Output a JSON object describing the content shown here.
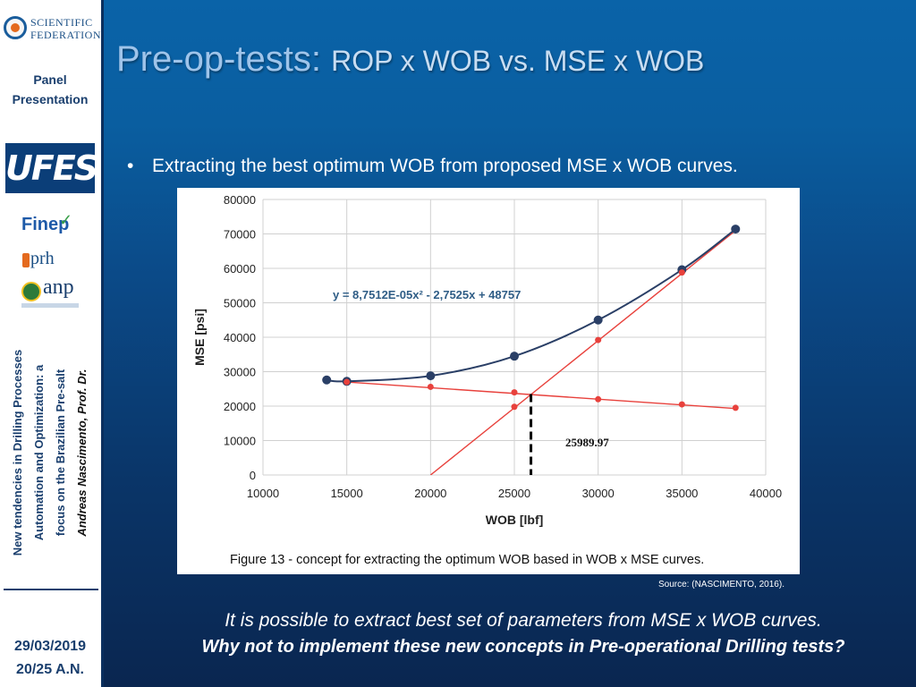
{
  "sidebar": {
    "logo_top": "SCIENTIFIC",
    "logo_bottom": "FEDERATION",
    "panel_line1": "Panel",
    "panel_line2": "Presentation",
    "ufes": "UFES",
    "finep": "Finep",
    "prh": "prh",
    "anp": "anp",
    "vertical_line1": "New tendencies in Drilling Processes",
    "vertical_line2": "Automation and Optimization: a",
    "vertical_line3": "focus on the Brazilian Pre-salt",
    "vertical_line4": "Andreas Nascimento, Prof. Dr.",
    "date": "29/03/2019",
    "page": "20/25  A.N."
  },
  "header": {
    "title_main": "Pre-op-tests: ",
    "title_sub": "ROP x WOB vs. MSE x WOB"
  },
  "bullet": {
    "symbol": "•",
    "text": "Extracting the best optimum WOB from proposed MSE x WOB curves."
  },
  "colors": {
    "curve": "#2a3f66",
    "lines": "#e8413c"
  },
  "chart_data": {
    "type": "scatter",
    "xlabel": "WOB [lbf]",
    "ylabel": "MSE [psi]",
    "xlim": [
      10000,
      40000
    ],
    "ylim": [
      0,
      80000
    ],
    "xticks": [
      10000,
      15000,
      20000,
      25000,
      30000,
      35000,
      40000
    ],
    "yticks": [
      0,
      10000,
      20000,
      30000,
      40000,
      50000,
      60000,
      70000,
      80000
    ],
    "grid": true,
    "equation": "y = 8,7512E-05x² - 2,7525x + 48757",
    "annotation": "25989.97",
    "optimum_wob": 25989.97,
    "caption": "Figure 13 - concept for extracting the optimum WOB based in WOB x MSE curves.",
    "series": [
      {
        "name": "",
        "points": [
          [
            13800,
            27600
          ],
          [
            15000,
            27200
          ],
          [
            20000,
            28800
          ],
          [
            25000,
            34500
          ],
          [
            30000,
            45000
          ],
          [
            35000,
            59600
          ],
          [
            38200,
            71400
          ]
        ]
      },
      {
        "name": "",
        "points": [
          [
            15000,
            27000
          ],
          [
            20000,
            25600
          ],
          [
            25000,
            24000
          ],
          [
            30000,
            22000
          ],
          [
            35000,
            20500
          ],
          [
            38200,
            19500
          ]
        ]
      },
      {
        "name": "",
        "points": [
          [
            25000,
            19800
          ],
          [
            30000,
            39200
          ],
          [
            35000,
            58800
          ]
        ]
      }
    ],
    "trend_lines": [
      {
        "from": [
          15000,
          27000
        ],
        "to": [
          38200,
          19300
        ]
      },
      {
        "from": [
          20000,
          0
        ],
        "to": [
          38200,
          71000
        ]
      }
    ]
  },
  "source": "Source: (NASCIMENTO, 2016).",
  "footer": {
    "line1": "It is possible to extract best set of parameters from MSE x WOB curves.",
    "line2": "Why not to implement these new concepts in Pre-operational Drilling tests?"
  }
}
